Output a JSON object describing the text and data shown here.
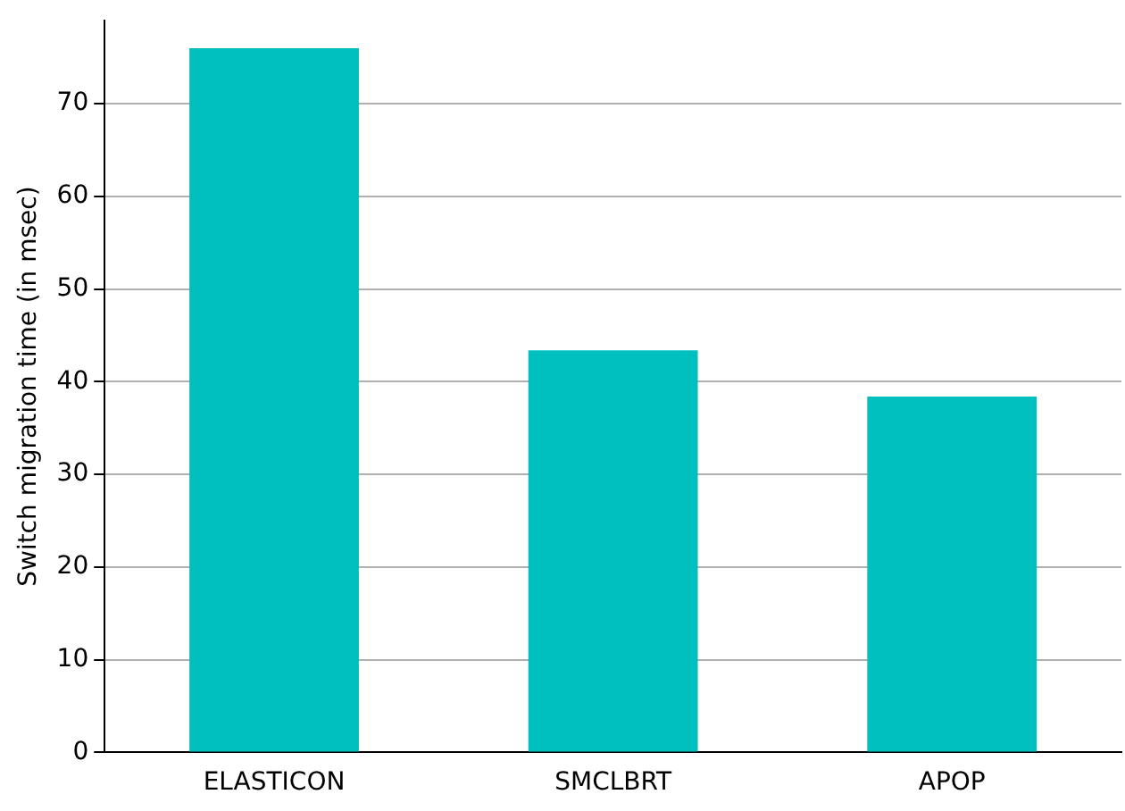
{
  "chart_data": {
    "type": "bar",
    "ylabel": "Switch migration time (in msec)",
    "categories": [
      "ELASTICON",
      "SMCLBRT",
      "APOP"
    ],
    "values": [
      76,
      43.4,
      38.4
    ],
    "color": "#00bfbf",
    "ylim": [
      0,
      79
    ],
    "yticks": [
      0,
      10,
      20,
      30,
      40,
      50,
      60,
      70
    ],
    "grid": "y",
    "legend": false
  }
}
